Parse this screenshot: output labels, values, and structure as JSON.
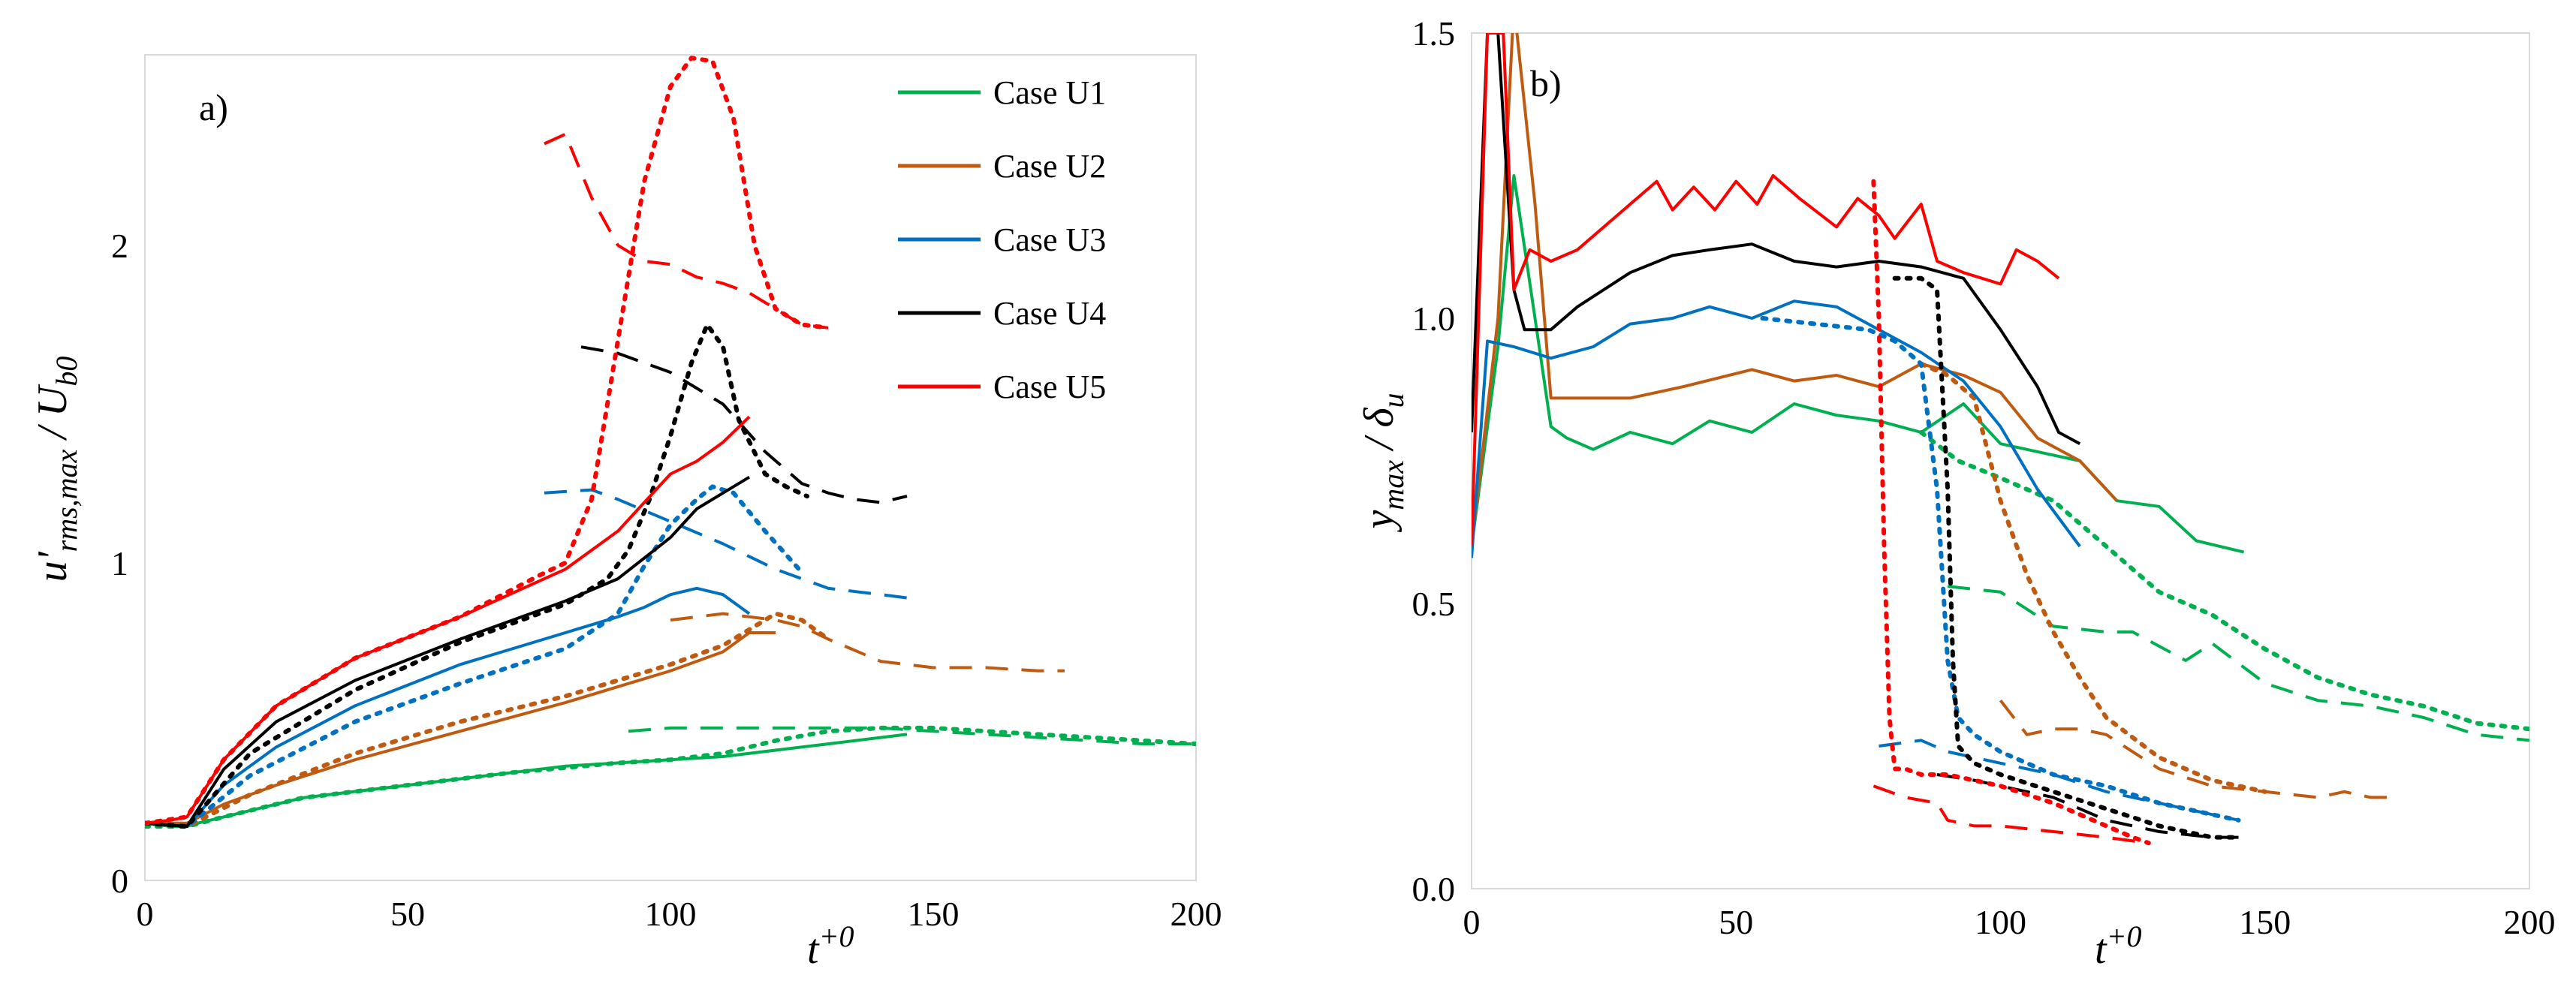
{
  "colors": {
    "U1": "#00b050",
    "U2": "#c05a11",
    "U3": "#0070c0",
    "U4": "#000000",
    "U5": "#ff0000"
  },
  "chart_data": [
    {
      "type": "line",
      "panel_label": "a)",
      "xlabel": "t+0",
      "ylabel": "u'rms,max / Ub0",
      "xlim": [
        0,
        200
      ],
      "ylim": [
        0,
        2.6
      ],
      "xticks": [
        "0",
        "50",
        "100",
        "150",
        "200"
      ],
      "yticks": [
        "0",
        "1",
        "2"
      ],
      "legend_position": "top-right",
      "legend": [
        "Case U1",
        "Case U2",
        "Case U3",
        "Case U4",
        "Case U5"
      ],
      "series": [
        {
          "case": "U1",
          "style": "solid",
          "x": [
            0,
            5,
            8,
            10,
            15,
            20,
            30,
            40,
            50,
            60,
            70,
            80,
            90,
            100,
            110,
            120,
            130,
            140,
            145
          ],
          "y": [
            0.18,
            0.17,
            0.17,
            0.18,
            0.2,
            0.22,
            0.26,
            0.28,
            0.3,
            0.32,
            0.34,
            0.36,
            0.37,
            0.38,
            0.39,
            0.41,
            0.43,
            0.45,
            0.46
          ]
        },
        {
          "case": "U1",
          "style": "dotted",
          "x": [
            0,
            8,
            15,
            30,
            50,
            70,
            90,
            100,
            110,
            120,
            130,
            140,
            150,
            160,
            170,
            180,
            190,
            200
          ],
          "y": [
            0.17,
            0.17,
            0.2,
            0.26,
            0.3,
            0.34,
            0.37,
            0.38,
            0.4,
            0.44,
            0.47,
            0.48,
            0.48,
            0.47,
            0.46,
            0.45,
            0.44,
            0.43
          ]
        },
        {
          "case": "U1",
          "style": "dashed",
          "x": [
            92,
            100,
            110,
            120,
            130,
            140,
            150,
            160,
            170,
            180,
            190,
            200
          ],
          "y": [
            0.47,
            0.48,
            0.48,
            0.48,
            0.48,
            0.48,
            0.47,
            0.46,
            0.45,
            0.44,
            0.43,
            0.43
          ]
        },
        {
          "case": "U2",
          "style": "solid",
          "x": [
            0,
            8,
            15,
            25,
            40,
            60,
            80,
            100,
            110,
            115,
            120
          ],
          "y": [
            0.18,
            0.18,
            0.24,
            0.3,
            0.38,
            0.47,
            0.56,
            0.66,
            0.72,
            0.78,
            0.78
          ]
        },
        {
          "case": "U2",
          "style": "dotted",
          "x": [
            0,
            8,
            20,
            40,
            60,
            80,
            100,
            110,
            115,
            120,
            125,
            130
          ],
          "y": [
            0.18,
            0.17,
            0.27,
            0.4,
            0.5,
            0.58,
            0.68,
            0.74,
            0.79,
            0.84,
            0.82,
            0.76
          ]
        },
        {
          "case": "U2",
          "style": "dashed",
          "x": [
            100,
            110,
            115,
            120,
            125,
            130,
            140,
            150,
            160,
            170,
            175
          ],
          "y": [
            0.82,
            0.84,
            0.83,
            0.82,
            0.8,
            0.76,
            0.69,
            0.67,
            0.67,
            0.66,
            0.66
          ]
        },
        {
          "case": "U3",
          "style": "solid",
          "x": [
            0,
            8,
            15,
            25,
            40,
            60,
            80,
            90,
            95,
            100,
            105,
            110,
            115
          ],
          "y": [
            0.18,
            0.17,
            0.3,
            0.42,
            0.55,
            0.68,
            0.78,
            0.83,
            0.86,
            0.9,
            0.92,
            0.9,
            0.84
          ]
        },
        {
          "case": "U3",
          "style": "dotted",
          "x": [
            0,
            8,
            20,
            40,
            60,
            80,
            90,
            95,
            100,
            105,
            108,
            112,
            118,
            125
          ],
          "y": [
            0.18,
            0.17,
            0.33,
            0.5,
            0.62,
            0.73,
            0.84,
            0.99,
            1.12,
            1.2,
            1.24,
            1.22,
            1.1,
            0.97
          ]
        },
        {
          "case": "U3",
          "style": "dashed",
          "x": [
            76,
            85,
            90,
            100,
            110,
            120,
            130,
            140,
            145
          ],
          "y": [
            1.22,
            1.23,
            1.2,
            1.13,
            1.06,
            0.98,
            0.92,
            0.9,
            0.89
          ]
        },
        {
          "case": "U4",
          "style": "solid",
          "x": [
            0,
            8,
            15,
            25,
            40,
            60,
            80,
            90,
            100,
            105,
            110,
            115
          ],
          "y": [
            0.18,
            0.17,
            0.35,
            0.5,
            0.63,
            0.76,
            0.88,
            0.95,
            1.08,
            1.17,
            1.22,
            1.27
          ]
        },
        {
          "case": "U4",
          "style": "dotted",
          "x": [
            0,
            8,
            20,
            40,
            60,
            80,
            88,
            92,
            96,
            100,
            104,
            107,
            110,
            113,
            118,
            122,
            126
          ],
          "y": [
            0.18,
            0.17,
            0.4,
            0.6,
            0.75,
            0.87,
            0.95,
            1.04,
            1.2,
            1.4,
            1.63,
            1.75,
            1.68,
            1.45,
            1.28,
            1.24,
            1.21
          ]
        },
        {
          "case": "U4",
          "style": "dashed",
          "x": [
            83,
            90,
            100,
            110,
            118,
            125,
            130,
            135,
            140,
            145
          ],
          "y": [
            1.68,
            1.66,
            1.6,
            1.5,
            1.35,
            1.25,
            1.22,
            1.2,
            1.19,
            1.21
          ]
        },
        {
          "case": "U5",
          "style": "solid",
          "x": [
            0,
            5,
            8,
            15,
            25,
            40,
            60,
            80,
            90,
            100,
            105,
            110,
            115
          ],
          "y": [
            0.18,
            0.19,
            0.2,
            0.38,
            0.55,
            0.7,
            0.83,
            0.98,
            1.1,
            1.28,
            1.32,
            1.38,
            1.46
          ]
        },
        {
          "case": "U5",
          "style": "dotted",
          "x": [
            0,
            8,
            15,
            25,
            40,
            60,
            75,
            80,
            85,
            90,
            95,
            100,
            104,
            108,
            112,
            116,
            120,
            125,
            130
          ],
          "y": [
            0.18,
            0.2,
            0.38,
            0.55,
            0.7,
            0.83,
            0.96,
            1.0,
            1.2,
            1.7,
            2.2,
            2.5,
            2.59,
            2.58,
            2.4,
            2.0,
            1.8,
            1.75,
            1.74
          ]
        },
        {
          "case": "U5",
          "style": "dashed",
          "x": [
            76,
            80,
            85,
            90,
            95,
            100,
            105,
            110,
            115,
            120,
            125,
            130
          ],
          "y": [
            2.32,
            2.35,
            2.15,
            2.0,
            1.95,
            1.94,
            1.9,
            1.88,
            1.85,
            1.8,
            1.75,
            1.74
          ]
        }
      ]
    },
    {
      "type": "line",
      "panel_label": "b)",
      "xlabel": "t+0",
      "ylabel": "ymax / δu",
      "xlim": [
        0,
        200
      ],
      "ylim": [
        0,
        1.5
      ],
      "xticks": [
        "0",
        "50",
        "100",
        "150",
        "200"
      ],
      "yticks": [
        "0.0",
        "0.5",
        "1.0",
        "1.5"
      ],
      "series": [
        {
          "case": "U1",
          "style": "solid",
          "x": [
            0,
            5,
            8,
            12,
            15,
            18,
            23,
            30,
            38,
            45,
            53,
            61,
            69,
            77,
            85,
            93,
            100,
            110,
            115,
            122,
            130,
            137,
            146
          ],
          "y": [
            0.6,
            0.95,
            1.25,
            1.0,
            0.81,
            0.79,
            0.77,
            0.8,
            0.78,
            0.82,
            0.8,
            0.85,
            0.83,
            0.82,
            0.8,
            0.85,
            0.78,
            0.76,
            0.75,
            0.68,
            0.67,
            0.61,
            0.59
          ]
        },
        {
          "case": "U1",
          "style": "dotted",
          "x": [
            85,
            92,
            100,
            110,
            120,
            130,
            140,
            145,
            150,
            160,
            170,
            180,
            190,
            200
          ],
          "y": [
            0.8,
            0.75,
            0.72,
            0.68,
            0.6,
            0.52,
            0.48,
            0.45,
            0.42,
            0.37,
            0.34,
            0.32,
            0.29,
            0.28
          ]
        },
        {
          "case": "U1",
          "style": "dashed",
          "x": [
            90,
            100,
            110,
            120,
            125,
            135,
            140,
            150,
            160,
            170,
            180,
            190,
            200
          ],
          "y": [
            0.53,
            0.52,
            0.46,
            0.45,
            0.45,
            0.4,
            0.43,
            0.36,
            0.33,
            0.32,
            0.3,
            0.27,
            0.26
          ]
        },
        {
          "case": "U2",
          "style": "solid",
          "x": [
            0,
            5,
            8,
            12,
            15,
            20,
            30,
            40,
            53,
            61,
            69,
            77,
            85,
            93,
            100,
            107,
            115,
            122
          ],
          "y": [
            0.6,
            1.0,
            1.55,
            1.2,
            0.86,
            0.86,
            0.86,
            0.88,
            0.91,
            0.89,
            0.9,
            0.88,
            0.92,
            0.9,
            0.87,
            0.79,
            0.75,
            0.68
          ]
        },
        {
          "case": "U2",
          "style": "dotted",
          "x": [
            85,
            90,
            95,
            100,
            105,
            110,
            115,
            120,
            130,
            140,
            150
          ],
          "y": [
            0.92,
            0.9,
            0.86,
            0.68,
            0.55,
            0.45,
            0.37,
            0.3,
            0.23,
            0.19,
            0.17
          ]
        },
        {
          "case": "U2",
          "style": "dashed",
          "x": [
            100,
            105,
            110,
            115,
            120,
            130,
            140,
            150,
            160,
            165,
            170,
            175
          ],
          "y": [
            0.33,
            0.27,
            0.28,
            0.28,
            0.27,
            0.21,
            0.18,
            0.17,
            0.16,
            0.17,
            0.16,
            0.16
          ]
        },
        {
          "case": "U3",
          "style": "solid",
          "x": [
            0,
            3,
            8,
            15,
            23,
            30,
            38,
            45,
            53,
            61,
            69,
            77,
            85,
            93,
            100,
            107,
            115
          ],
          "y": [
            0.58,
            0.96,
            0.95,
            0.93,
            0.95,
            0.99,
            1.0,
            1.02,
            1.0,
            1.03,
            1.02,
            0.98,
            0.94,
            0.89,
            0.81,
            0.7,
            0.6
          ]
        },
        {
          "case": "U3",
          "style": "dotted",
          "x": [
            55,
            65,
            75,
            80,
            85,
            88,
            90,
            92,
            95,
            100,
            105,
            110,
            115,
            120,
            130,
            140,
            145
          ],
          "y": [
            1.0,
            0.99,
            0.98,
            0.96,
            0.92,
            0.7,
            0.4,
            0.3,
            0.27,
            0.24,
            0.22,
            0.2,
            0.19,
            0.18,
            0.15,
            0.13,
            0.12
          ]
        },
        {
          "case": "U3",
          "style": "dashed",
          "x": [
            77,
            85,
            90,
            100,
            110,
            120,
            130,
            140,
            145
          ],
          "y": [
            0.25,
            0.26,
            0.24,
            0.22,
            0.2,
            0.17,
            0.15,
            0.13,
            0.12
          ]
        },
        {
          "case": "U4",
          "style": "solid",
          "x": [
            0,
            3,
            5,
            8,
            10,
            15,
            20,
            25,
            30,
            38,
            45,
            53,
            61,
            69,
            77,
            85,
            93,
            100,
            107,
            111,
            115
          ],
          "y": [
            0.8,
            1.5,
            1.5,
            1.05,
            0.98,
            0.98,
            1.02,
            1.05,
            1.08,
            1.11,
            1.12,
            1.13,
            1.1,
            1.09,
            1.1,
            1.09,
            1.07,
            0.98,
            0.88,
            0.8,
            0.78
          ]
        },
        {
          "case": "U4",
          "style": "dotted",
          "x": [
            80,
            85,
            88,
            90,
            91,
            92,
            95,
            100,
            110,
            120,
            130,
            140,
            145
          ],
          "y": [
            1.07,
            1.07,
            1.05,
            0.7,
            0.4,
            0.25,
            0.22,
            0.2,
            0.17,
            0.14,
            0.11,
            0.09,
            0.09
          ]
        },
        {
          "case": "U4",
          "style": "dashed",
          "x": [
            88,
            95,
            100,
            110,
            115,
            120,
            130,
            140,
            145
          ],
          "y": [
            0.2,
            0.19,
            0.18,
            0.16,
            0.14,
            0.12,
            0.1,
            0.09,
            0.09
          ]
        },
        {
          "case": "U5",
          "style": "solid",
          "x": [
            0,
            3,
            6,
            8,
            11,
            15,
            20,
            30,
            35,
            38,
            42,
            46,
            50,
            54,
            57,
            62,
            69,
            73,
            77,
            80,
            85,
            88,
            93,
            100,
            103,
            107,
            111
          ],
          "y": [
            0.6,
            1.5,
            1.5,
            1.05,
            1.12,
            1.1,
            1.12,
            1.2,
            1.24,
            1.19,
            1.23,
            1.19,
            1.24,
            1.2,
            1.25,
            1.21,
            1.16,
            1.21,
            1.18,
            1.14,
            1.2,
            1.1,
            1.08,
            1.06,
            1.12,
            1.1,
            1.07
          ]
        },
        {
          "case": "U5",
          "style": "dotted",
          "x": [
            76,
            77,
            78,
            79,
            80,
            82,
            85,
            90,
            100,
            110,
            120,
            125,
            128
          ],
          "y": [
            1.24,
            1.0,
            0.6,
            0.3,
            0.21,
            0.21,
            0.2,
            0.2,
            0.18,
            0.15,
            0.11,
            0.09,
            0.08
          ]
        },
        {
          "case": "U5",
          "style": "dashed",
          "x": [
            76,
            82,
            88,
            90,
            95,
            100,
            110,
            120,
            128
          ],
          "y": [
            0.18,
            0.16,
            0.15,
            0.12,
            0.11,
            0.11,
            0.1,
            0.09,
            0.08
          ]
        }
      ]
    }
  ]
}
